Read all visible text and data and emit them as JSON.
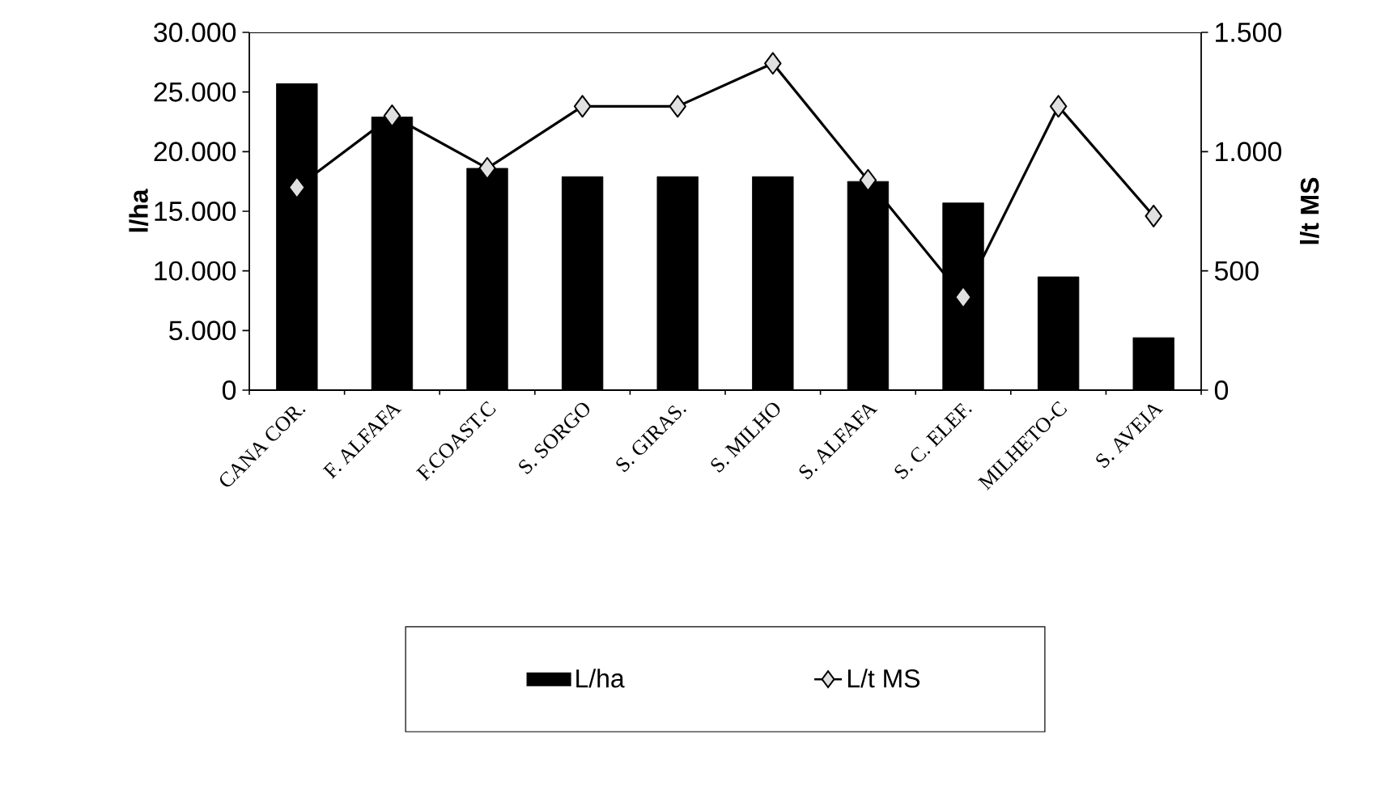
{
  "chart_data": {
    "type": "bar",
    "ylabel": "l/ha",
    "y2label": "l/t MS",
    "categories": [
      "CANA COR.",
      "F. ALFAFA",
      "F.COAST.C",
      "S. SORGO",
      "S. GIRAS.",
      "S. MILHO",
      "S. ALFAFA",
      "S. C. ELEF.",
      "MILHETO-C",
      "S. AVEIA"
    ],
    "series": [
      {
        "name": "L/ha",
        "color": "#000000",
        "values": [
          25700,
          22900,
          18600,
          17900,
          17900,
          17900,
          17500,
          15700,
          9500,
          4400
        ]
      },
      {
        "name": "L/t MS",
        "type": "line",
        "axis": "y2",
        "color": "#000000",
        "marker": "diamond",
        "line_style": "solid",
        "values": [
          850,
          1150,
          930,
          1190,
          1190,
          1370,
          880,
          390,
          1190,
          730
        ]
      }
    ],
    "ylim": [
      0,
      30000
    ],
    "yticks": [
      0,
      {
        "value": 5000,
        "label": "5.000"
      },
      {
        "value": 10000,
        "label": "10.000"
      },
      {
        "value": 15000,
        "label": "15.000"
      },
      {
        "value": 20000,
        "label": "20.000"
      },
      {
        "value": 25000,
        "label": "25.000"
      },
      {
        "value": 30000,
        "label": "30.000"
      }
    ],
    "y2lim": [
      0,
      1500
    ],
    "y2ticks": [
      0,
      500,
      {
        "value": 1000,
        "label": "1.000"
      },
      {
        "value": 1500,
        "label": "1.500"
      }
    ],
    "legend": "bottom"
  }
}
